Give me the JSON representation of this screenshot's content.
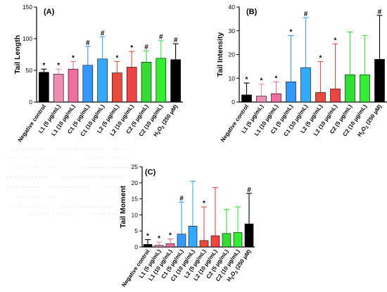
{
  "categories": [
    "Negative control",
    "L1 (5 μg/mL)",
    "L1 (10 μg/mL)",
    "C1 (5 μg/mL)",
    "C1 (10 μg/mL)",
    "L2 (5 μg/mL)",
    "L2 (10 μg/mL)",
    "C2 (5 μg/mL)",
    "C2 (10 μg/mL)",
    "H2O2 (250 μM)"
  ],
  "category_markup": [
    "Negative control",
    "L1 (5 μg/mL)",
    "L1 (10 μg/mL)",
    "C1 (5 μg/mL)",
    "C1 (10 μg/mL)",
    "L2 (5 μg/mL)",
    "L2 (10 μg/mL)",
    "C2 (5 μg/mL)",
    "C2 (10 μg/mL)",
    "H<tspan font-size='6' dy='2'>2</tspan><tspan dy='-2'>O</tspan><tspan font-size='6' dy='2'>2</tspan><tspan dy='-2'> (250 μM)</tspan>"
  ],
  "colors": [
    "#000000",
    "#f08cb4",
    "#f06e9e",
    "#3399ff",
    "#33aaff",
    "#e84a3c",
    "#ee4444",
    "#33dd33",
    "#33ee33",
    "#000000"
  ],
  "chart_data": [
    {
      "type": "bar",
      "panel": "(A)",
      "ylabel": "Tail Length",
      "ylim": [
        0,
        150
      ],
      "yticks": [
        0,
        50,
        100,
        150
      ],
      "values": [
        47,
        44,
        52,
        58,
        68,
        46,
        55,
        63,
        69,
        67
      ],
      "errors": [
        5,
        8,
        12,
        30,
        35,
        18,
        25,
        18,
        28,
        25
      ],
      "markers": [
        "*",
        "*",
        "*",
        "#",
        "#",
        "*",
        "*",
        "#",
        "#",
        "#"
      ]
    },
    {
      "type": "bar",
      "panel": "(B)",
      "ylabel": "Tail Intensity",
      "ylim": [
        0,
        40
      ],
      "yticks": [
        0,
        10,
        20,
        30,
        40
      ],
      "values": [
        3,
        2.5,
        3.5,
        8.5,
        14.5,
        4,
        5.5,
        11.5,
        11.5,
        18
      ],
      "errors": [
        5,
        5,
        5,
        19.5,
        21,
        13,
        19,
        18,
        16.5,
        18.5
      ],
      "markers": [
        "*",
        "*",
        "*",
        "*",
        "#",
        "*",
        "*",
        "",
        "",
        "#"
      ]
    },
    {
      "type": "bar",
      "panel": "(C)",
      "ylabel": "Tail Moment",
      "ylim": [
        0,
        25
      ],
      "yticks": [
        0,
        5,
        10,
        15,
        20,
        25
      ],
      "values": [
        0.8,
        0.5,
        1,
        4,
        6.5,
        2,
        3.5,
        4.2,
        4.5,
        7.2
      ],
      "errors": [
        1.5,
        1,
        1.5,
        10,
        14,
        10.5,
        15,
        7.5,
        8,
        9.5
      ],
      "markers": [
        "*",
        "*",
        "*",
        "#",
        "",
        "*",
        "",
        "",
        "",
        "#"
      ]
    }
  ]
}
